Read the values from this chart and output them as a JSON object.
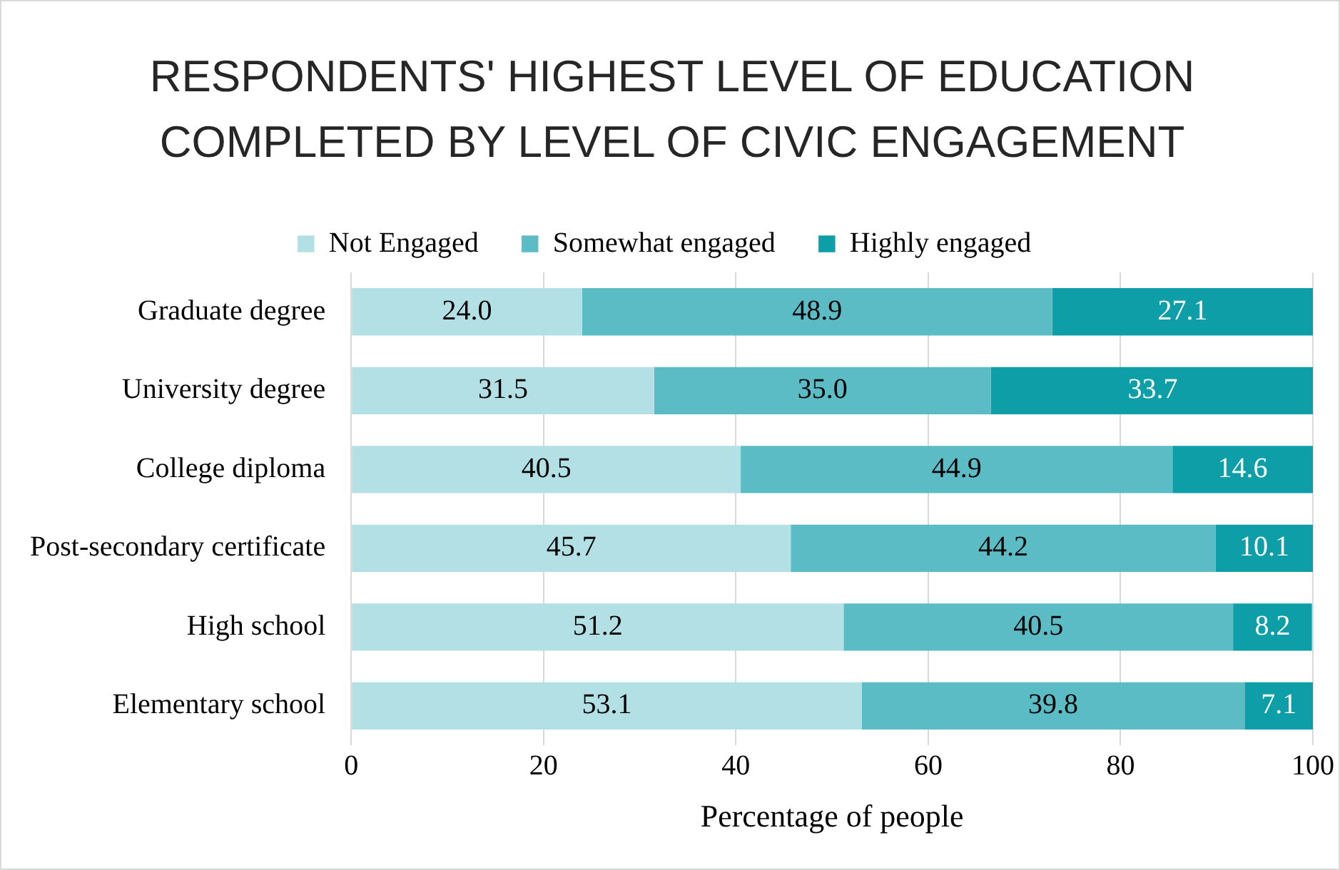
{
  "chart_data": {
    "type": "bar",
    "orientation": "horizontal",
    "stacked": true,
    "title": "RESPONDENTS' HIGHEST LEVEL OF EDUCATION COMPLETED BY LEVEL OF CIVIC ENGAGEMENT",
    "xlabel": "Percentage of people",
    "categories": [
      "Graduate degree",
      "University degree",
      "College diploma",
      "Post-secondary certificate",
      "High school",
      "Elementary school"
    ],
    "series": [
      {
        "name": "Not Engaged",
        "color": "#b3e0e5",
        "values": [
          24.0,
          31.5,
          40.5,
          45.7,
          51.2,
          53.1
        ],
        "value_labels": [
          "24.0",
          "31.5",
          "40.5",
          "45.7",
          "51.2",
          "53.1"
        ]
      },
      {
        "name": "Somewhat engaged",
        "color": "#5bbcc6",
        "values": [
          48.9,
          35.0,
          44.9,
          44.2,
          40.5,
          39.8
        ],
        "value_labels": [
          "48.9",
          "35.0",
          "44.9",
          "44.2",
          "40.5",
          "39.8"
        ]
      },
      {
        "name": "Highly engaged",
        "color": "#0e9ea8",
        "values": [
          27.1,
          33.7,
          14.6,
          10.1,
          8.2,
          7.1
        ],
        "value_labels": [
          "27.1",
          "33.7",
          "14.6",
          "10.1",
          "8.2",
          "7.1"
        ]
      }
    ],
    "xlim": [
      0,
      100
    ],
    "xticks": [
      0,
      20,
      40,
      60,
      80,
      100
    ],
    "grid": "x",
    "legend": "top"
  }
}
